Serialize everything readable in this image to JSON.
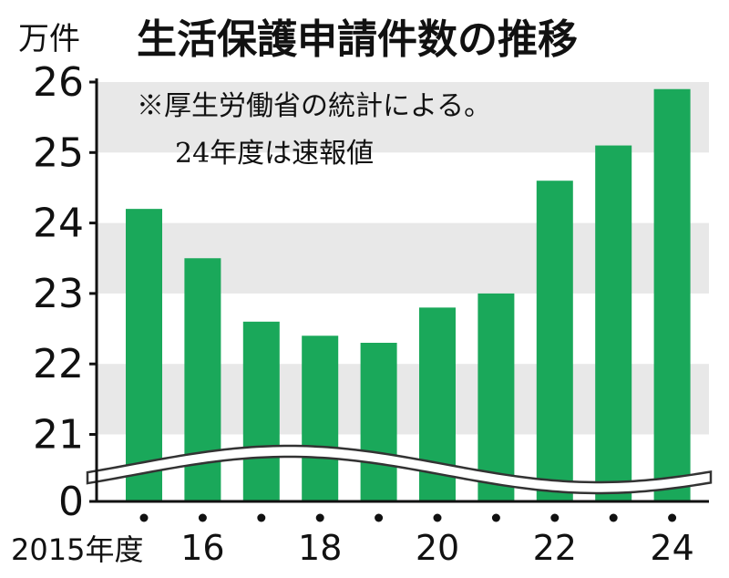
{
  "chart_data": {
    "type": "bar",
    "title": "生活保護申請件数の推移",
    "unit": "万件",
    "note_lines": [
      "※厚生労働省の統計による。",
      "24年度は速報値"
    ],
    "categories": [
      "2015",
      "2016",
      "2017",
      "2018",
      "2019",
      "2020",
      "2021",
      "2022",
      "2023",
      "2024"
    ],
    "tick_labels": [
      "2015年度",
      "16",
      "",
      "18",
      "",
      "20",
      "",
      "22",
      "",
      "24"
    ],
    "values": [
      24.2,
      23.5,
      22.6,
      22.4,
      22.3,
      22.8,
      23.0,
      24.6,
      25.1,
      25.9
    ],
    "y_ticks": [
      26,
      25,
      24,
      23,
      22,
      21,
      0
    ],
    "ylim": [
      20.3,
      26.0
    ],
    "axis_break": true,
    "grid": "alternating-bands",
    "colors": {
      "bar": "#1aa85a",
      "band": "#e8e8e8",
      "text": "#111111"
    }
  }
}
